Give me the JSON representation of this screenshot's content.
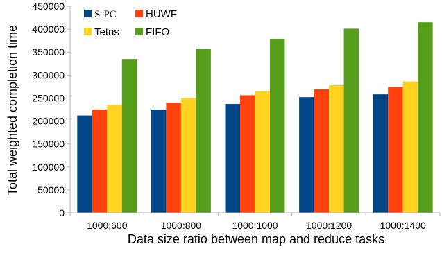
{
  "chart_data": {
    "type": "bar",
    "title": "",
    "xlabel": "Data size ratio between map and reduce tasks",
    "ylabel": "Total weighted completion time",
    "categories": [
      "1000:600",
      "1000:800",
      "1000:1000",
      "1000:1200",
      "1000:1400"
    ],
    "ylim": [
      0,
      450000
    ],
    "yticks": [
      0,
      50000,
      100000,
      150000,
      200000,
      250000,
      300000,
      350000,
      400000,
      450000
    ],
    "grid": false,
    "legend_position": "top-left",
    "series": [
      {
        "name": "S-PC",
        "color": "#004586",
        "values": [
          212000,
          225000,
          237000,
          252000,
          258000
        ]
      },
      {
        "name": "HUWF",
        "color": "#ff420e",
        "values": [
          225000,
          240000,
          256000,
          269000,
          274000
        ]
      },
      {
        "name": "Tetris",
        "color": "#ffd320",
        "values": [
          235000,
          250000,
          265000,
          278000,
          286000
        ]
      },
      {
        "name": "FIFO",
        "color": "#579d1c",
        "values": [
          335000,
          357000,
          379000,
          401000,
          415000
        ]
      }
    ]
  }
}
